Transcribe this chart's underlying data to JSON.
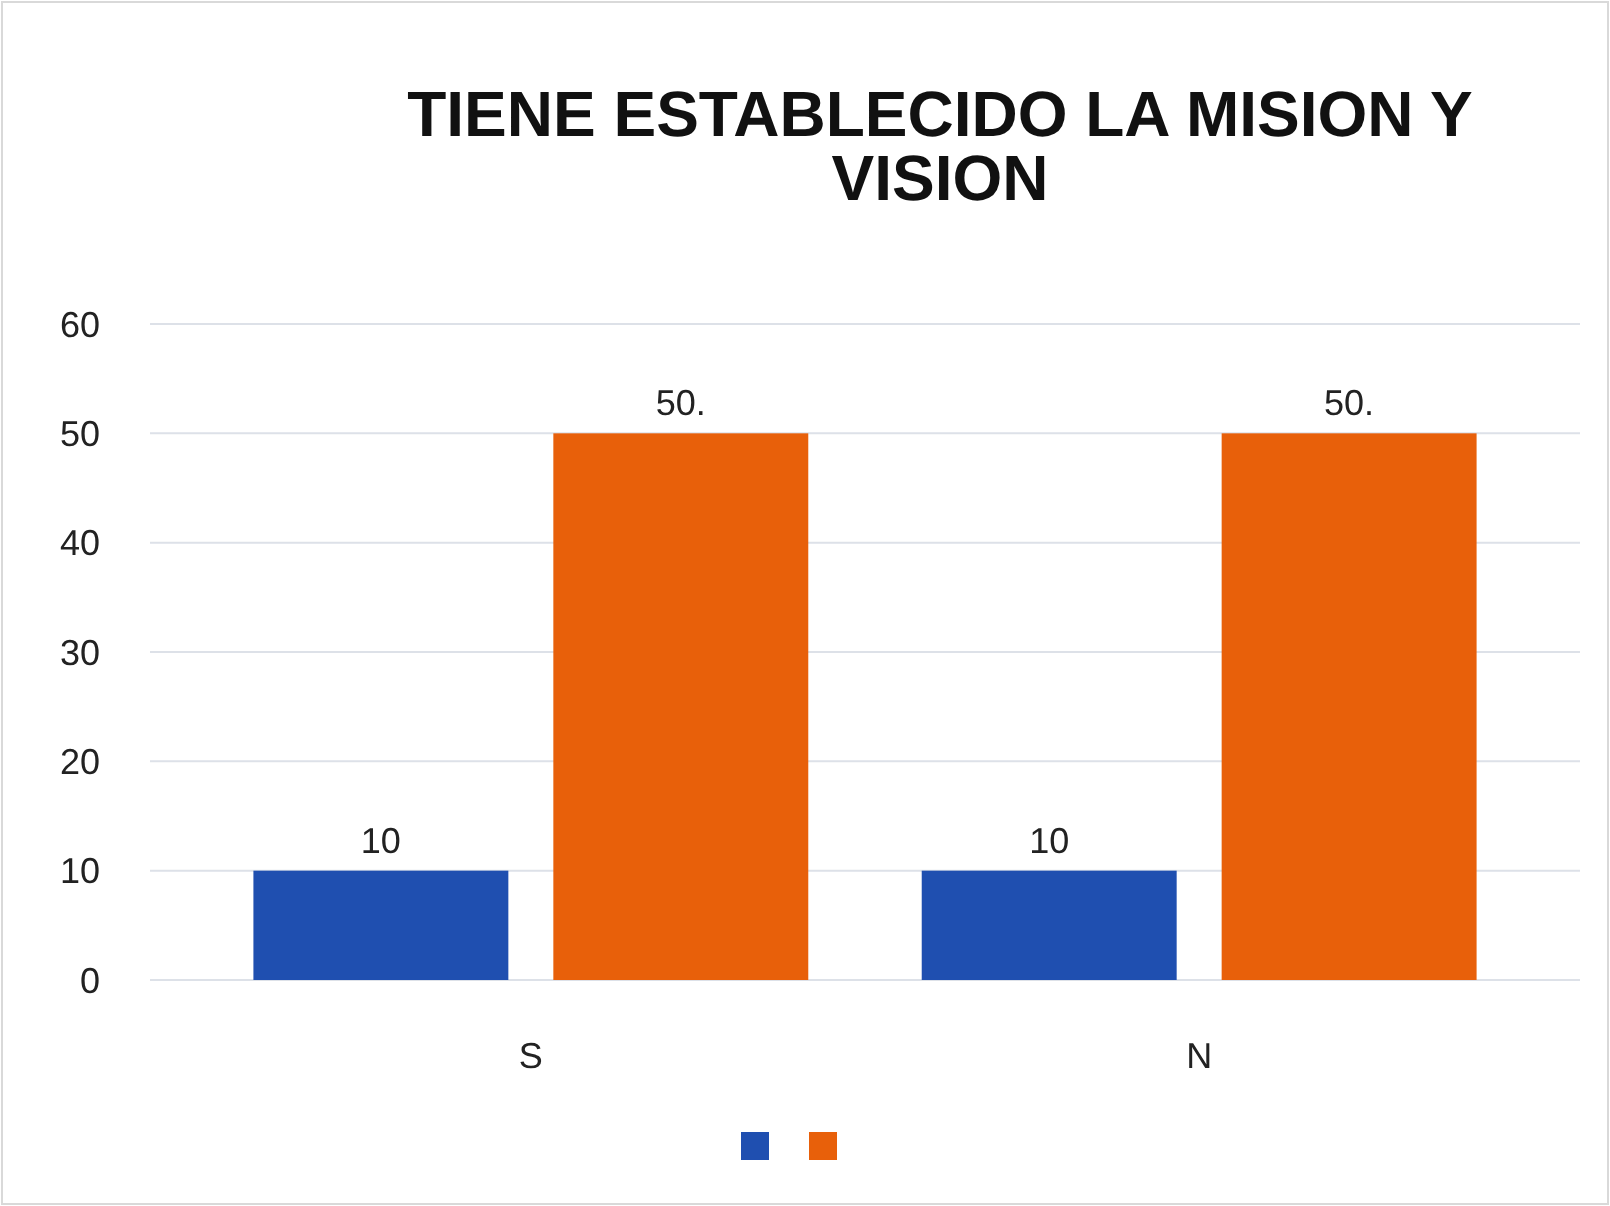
{
  "chart_data": {
    "type": "bar",
    "title": "TIENE ESTABLECIDO LA MISION Y VISION",
    "categories": [
      "S",
      "N"
    ],
    "series": [
      {
        "color": "#1f4fb0",
        "values": [
          10,
          10
        ],
        "value_labels": [
          "10",
          "10"
        ]
      },
      {
        "color": "#e8600a",
        "values": [
          50,
          50
        ],
        "value_labels": [
          "50.",
          "50."
        ]
      }
    ],
    "ylim": [
      0,
      60
    ],
    "yticks": [
      0,
      10,
      20,
      30,
      40,
      50,
      60
    ],
    "grid": "y"
  }
}
